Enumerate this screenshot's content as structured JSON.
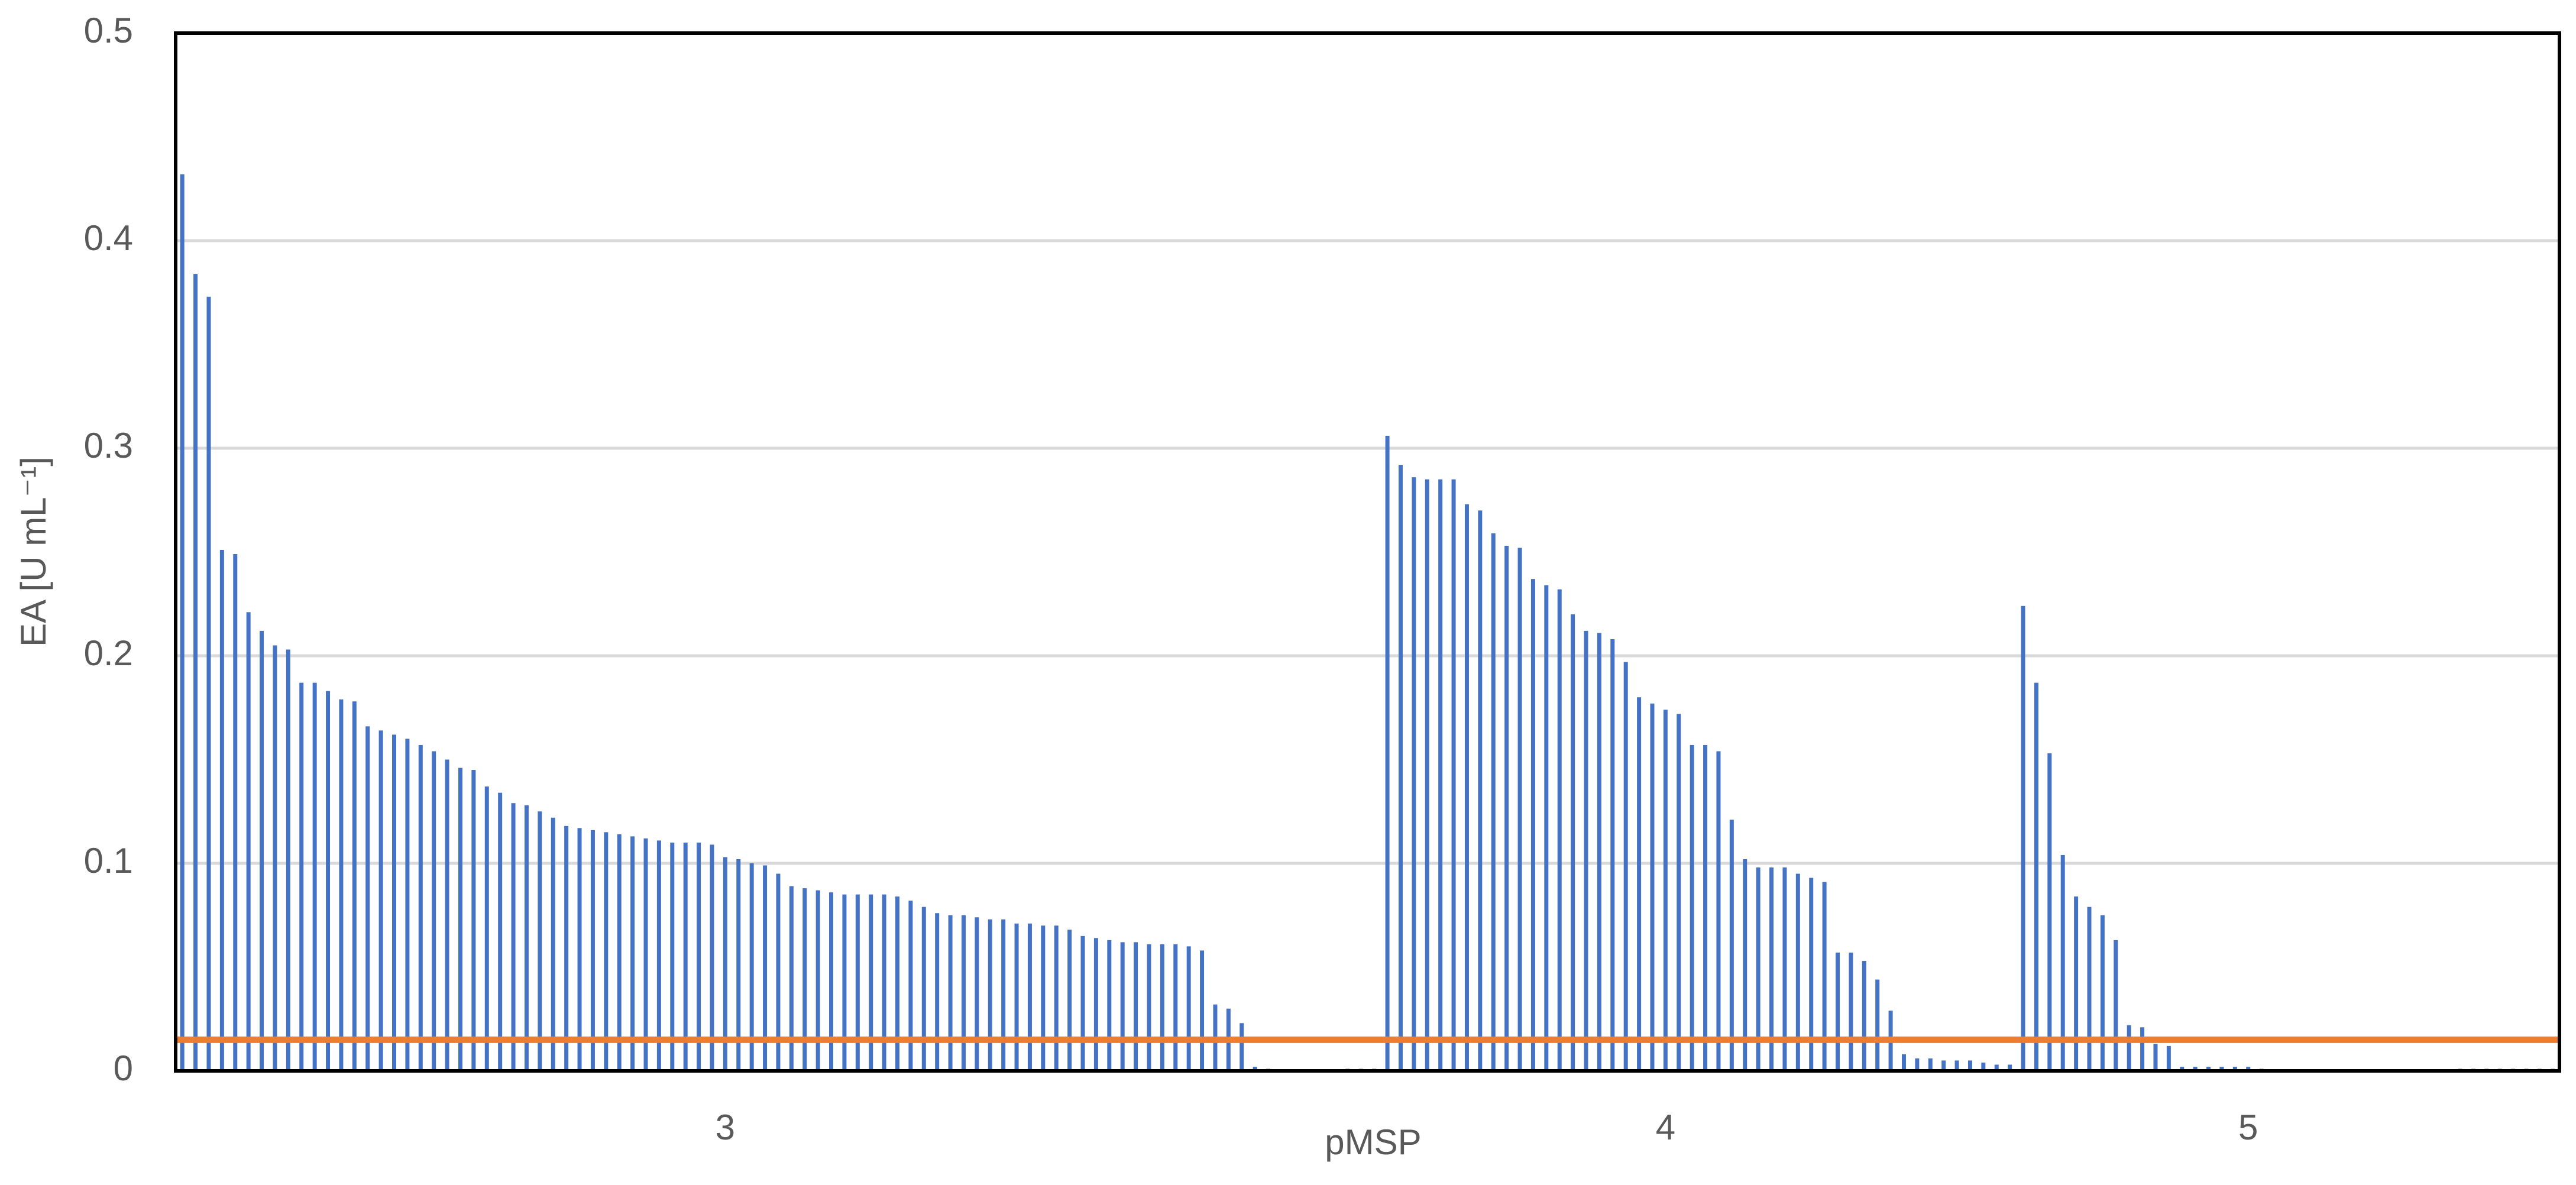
{
  "chart_data": {
    "type": "bar",
    "x_label": "pMSP",
    "y_label": "EA [U mL⁻¹]",
    "color": "#4472c4",
    "reference_line": 0.015,
    "reference_color": "#ed7d31",
    "grid": true,
    "ylim": [
      0,
      0.5
    ],
    "yticks": [
      0,
      0.1,
      0.2,
      0.3,
      0.4,
      0.5
    ],
    "categories": [
      null,
      null,
      null,
      null,
      null,
      null,
      null,
      null,
      null,
      null,
      null,
      null,
      null,
      null,
      null,
      null,
      null,
      null,
      null,
      null,
      null,
      null,
      null,
      null,
      null,
      null,
      null,
      null,
      null,
      null,
      null,
      null,
      null,
      null,
      null,
      null,
      null,
      null,
      null,
      null,
      null,
      "3",
      null,
      null,
      null,
      null,
      null,
      null,
      null,
      null,
      null,
      null,
      null,
      null,
      null,
      null,
      null,
      null,
      null,
      null,
      null,
      null,
      null,
      null,
      null,
      null,
      null,
      null,
      null,
      null,
      null,
      null,
      null,
      null,
      null,
      null,
      null,
      null,
      null,
      null,
      null,
      null,
      null,
      null,
      null,
      null,
      null,
      null,
      null,
      null,
      null,
      null,
      null,
      null,
      null,
      null,
      null,
      null,
      null,
      null,
      null,
      null,
      null,
      null,
      null,
      null,
      null,
      null,
      null,
      null,
      null,
      null,
      "4",
      null,
      null,
      null,
      null,
      null,
      null,
      null,
      null,
      null,
      null,
      null,
      null,
      null,
      null,
      null,
      null,
      null,
      null,
      null,
      null,
      null,
      null,
      null,
      null,
      null,
      null,
      null,
      null,
      null,
      null,
      null,
      null,
      null,
      null,
      null,
      null,
      null,
      null,
      null,
      null,
      null,
      null,
      null,
      "5",
      null,
      null,
      null,
      null,
      null,
      null,
      null,
      null,
      null,
      null,
      null,
      null,
      null,
      null,
      null,
      null,
      null,
      null,
      null,
      null,
      null,
      null,
      null
    ],
    "values": [
      0.432,
      0.384,
      0.373,
      0.251,
      0.249,
      0.221,
      0.212,
      0.205,
      0.203,
      0.187,
      0.187,
      0.183,
      0.179,
      0.178,
      0.166,
      0.164,
      0.162,
      0.16,
      0.157,
      0.154,
      0.15,
      0.146,
      0.145,
      0.137,
      0.134,
      0.129,
      0.128,
      0.125,
      0.122,
      0.118,
      0.117,
      0.116,
      0.115,
      0.114,
      0.113,
      0.112,
      0.111,
      0.11,
      0.11,
      0.11,
      0.109,
      0.103,
      0.102,
      0.1,
      0.099,
      0.095,
      0.089,
      0.088,
      0.087,
      0.086,
      0.085,
      0.085,
      0.085,
      0.085,
      0.084,
      0.082,
      0.079,
      0.076,
      0.075,
      0.075,
      0.074,
      0.073,
      0.073,
      0.071,
      0.071,
      0.07,
      0.07,
      0.068,
      0.065,
      0.064,
      0.063,
      0.062,
      0.062,
      0.061,
      0.061,
      0.061,
      0.06,
      0.058,
      0.032,
      0.03,
      0.023,
      0.002,
      0.001,
      0,
      0,
      0,
      0,
      0,
      0.001,
      0.001,
      0.001,
      0.306,
      0.292,
      0.286,
      0.285,
      0.285,
      0.285,
      0.273,
      0.27,
      0.259,
      0.253,
      0.252,
      0.237,
      0.234,
      0.232,
      0.22,
      0.212,
      0.211,
      0.208,
      0.197,
      0.18,
      0.177,
      0.174,
      0.172,
      0.157,
      0.157,
      0.154,
      0.121,
      0.102,
      0.098,
      0.098,
      0.098,
      0.095,
      0.093,
      0.091,
      0.057,
      0.057,
      0.053,
      0.044,
      0.029,
      0.008,
      0.006,
      0.006,
      0.005,
      0.005,
      0.005,
      0.004,
      0.003,
      0.003,
      0.224,
      0.187,
      0.153,
      0.104,
      0.084,
      0.079,
      0.075,
      0.063,
      0.022,
      0.021,
      0.013,
      0.012,
      0.002,
      0.002,
      0.002,
      0.002,
      0.002,
      0.002,
      0.001,
      0,
      0,
      0,
      0,
      0,
      0,
      0,
      0,
      0,
      0,
      0,
      0,
      0,
      0,
      0.001,
      0.001,
      0.001,
      0.001,
      0.001,
      0.001,
      0.001,
      0.001
    ]
  }
}
